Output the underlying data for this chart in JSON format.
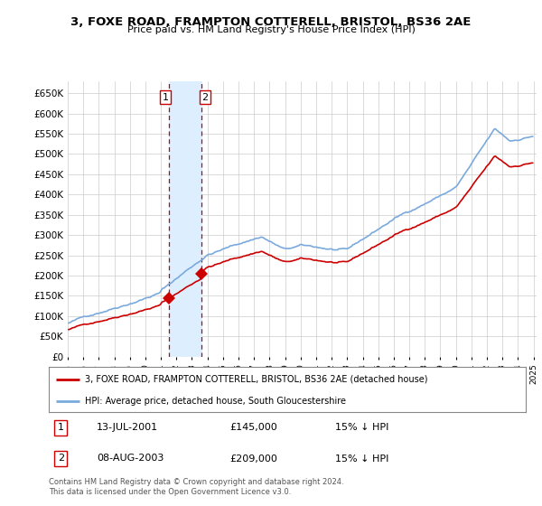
{
  "title": "3, FOXE ROAD, FRAMPTON COTTERELL, BRISTOL, BS36 2AE",
  "subtitle": "Price paid vs. HM Land Registry's House Price Index (HPI)",
  "legend_line1": "3, FOXE ROAD, FRAMPTON COTTERELL, BRISTOL, BS36 2AE (detached house)",
  "legend_line2": "HPI: Average price, detached house, South Gloucestershire",
  "transaction1_date": "13-JUL-2001",
  "transaction1_price": "£145,000",
  "transaction1_hpi": "15% ↓ HPI",
  "transaction2_date": "08-AUG-2003",
  "transaction2_price": "£209,000",
  "transaction2_hpi": "15% ↓ HPI",
  "footer": "Contains HM Land Registry data © Crown copyright and database right 2024.\nThis data is licensed under the Open Government Licence v3.0.",
  "line_color_red": "#cc0000",
  "line_color_blue": "#7aaadd",
  "shaded_color": "#ddeeff",
  "vline_color": "#cc0000",
  "grid_color": "#cccccc",
  "bg_color": "#ffffff",
  "ylim": [
    0,
    680000
  ],
  "yticks": [
    0,
    50000,
    100000,
    150000,
    200000,
    250000,
    300000,
    350000,
    400000,
    450000,
    500000,
    550000,
    600000,
    650000
  ],
  "transaction1_x": 2001.54,
  "transaction2_x": 2003.6
}
